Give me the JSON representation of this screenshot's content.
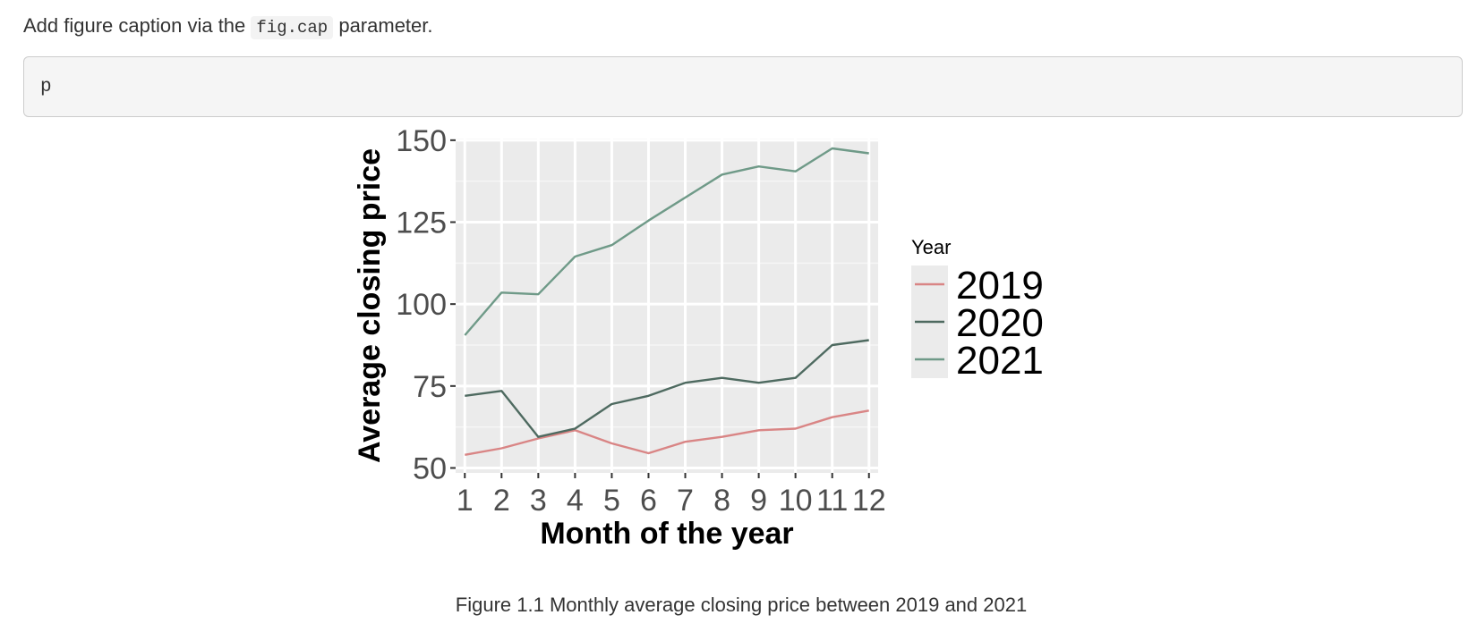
{
  "intro": {
    "before": "Add figure caption via the ",
    "code": "fig.cap",
    "after": " parameter."
  },
  "code_block": {
    "text": "p"
  },
  "caption": "Figure 1.1 Monthly average closing price between 2019 and 2021",
  "chart_data": {
    "type": "line",
    "xlabel": "Month of the year",
    "ylabel": "Average closing price",
    "x": [
      1,
      2,
      3,
      4,
      5,
      6,
      7,
      8,
      9,
      10,
      11,
      12
    ],
    "xticks": [
      "1",
      "2",
      "3",
      "4",
      "5",
      "6",
      "7",
      "8",
      "9",
      "10",
      "11",
      "12"
    ],
    "xlim": [
      0.75,
      12.25
    ],
    "ylim": [
      48.5,
      150.5
    ],
    "yticks": [
      50,
      75,
      100,
      125,
      150
    ],
    "grid": true,
    "legend": {
      "title": "Year",
      "placement": "right"
    },
    "series": [
      {
        "name": "2019",
        "color": "#d98585",
        "values": [
          54,
          56,
          59,
          61.5,
          57.5,
          54.5,
          58,
          59.5,
          61.5,
          62,
          65.5,
          67.5
        ]
      },
      {
        "name": "2020",
        "color": "#4e6a60",
        "values": [
          72,
          73.5,
          59.5,
          62,
          69.5,
          72,
          76,
          77.5,
          76,
          77.5,
          87.5,
          89
        ]
      },
      {
        "name": "2021",
        "color": "#6f9a88",
        "values": [
          90.5,
          103.5,
          103,
          114.5,
          118,
          125.5,
          132.5,
          139.5,
          142,
          140.5,
          147.5,
          146
        ]
      }
    ]
  }
}
